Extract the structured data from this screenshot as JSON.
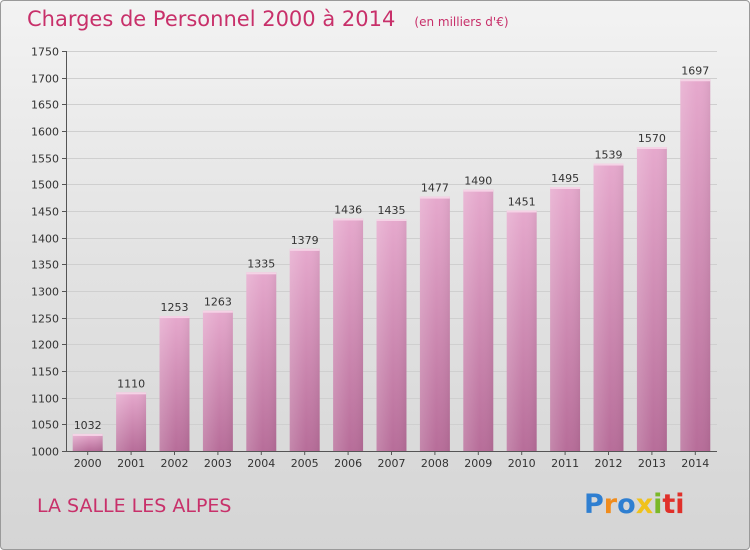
{
  "chart_data": {
    "type": "bar",
    "title": "Charges de Personnel 2000 à 2014",
    "subtitle": "(en milliers d'€)",
    "categories": [
      "2000",
      "2001",
      "2002",
      "2003",
      "2004",
      "2005",
      "2006",
      "2007",
      "2008",
      "2009",
      "2010",
      "2011",
      "2012",
      "2013",
      "2014"
    ],
    "values": [
      1032,
      1110,
      1253,
      1263,
      1335,
      1379,
      1436,
      1435,
      1477,
      1490,
      1451,
      1495,
      1539,
      1570,
      1697
    ],
    "ylim": [
      1000,
      1750
    ],
    "yticks": [
      1000,
      1050,
      1100,
      1150,
      1200,
      1250,
      1300,
      1350,
      1400,
      1450,
      1500,
      1550,
      1600,
      1650,
      1700,
      1750
    ],
    "xlabel": "",
    "ylabel": "",
    "grid": true,
    "bar_color": "#d08ab2"
  },
  "footer": {
    "commune": "LA SALLE LES ALPES",
    "logo": "Proxiti"
  },
  "colors": {
    "accent": "#c8306a",
    "logo_letters": [
      "#2f7fd1",
      "#f08c1c",
      "#2f7fd1",
      "#f0c21c",
      "#7ab828",
      "#e0302a",
      "#e0302a"
    ]
  }
}
